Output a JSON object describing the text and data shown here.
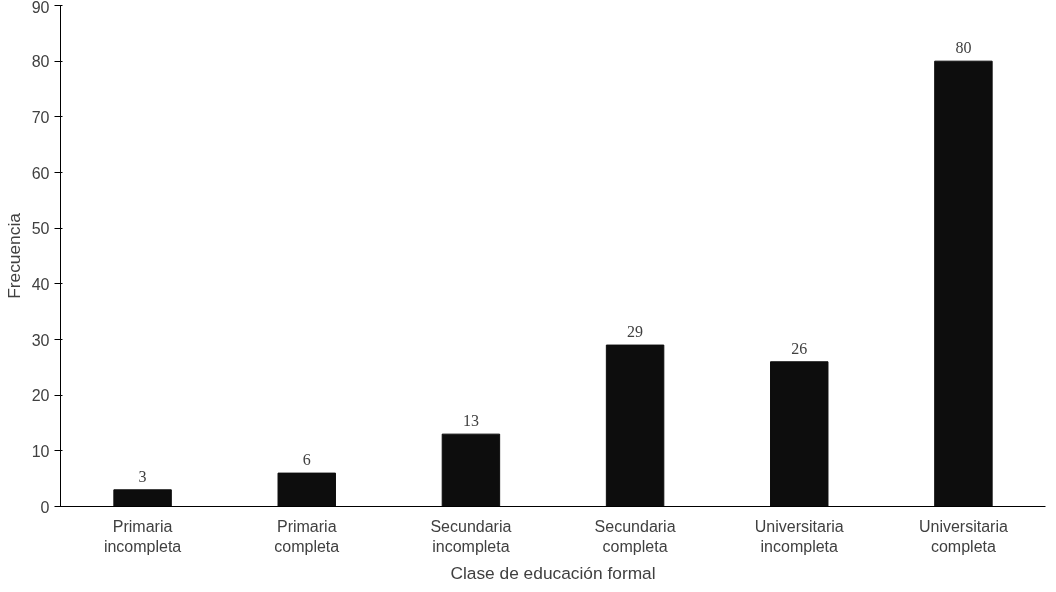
{
  "chart_data": {
    "type": "bar",
    "xlabel": "Clase de educación formal",
    "ylabel": "Frecuencia",
    "categories": [
      "Primaria incompleta",
      "Primaria completa",
      "Secundaria incompleta",
      "Secundaria completa",
      "Universitaria incompleta",
      "Universitaria completa"
    ],
    "values": [
      3,
      6,
      13,
      29,
      26,
      80
    ],
    "color": "#0d0d0d",
    "ylim": [
      0,
      90
    ],
    "yticks": [
      0,
      10,
      20,
      30,
      40,
      50,
      60,
      70,
      80,
      90
    ],
    "grid": false,
    "data_labels": true
  }
}
